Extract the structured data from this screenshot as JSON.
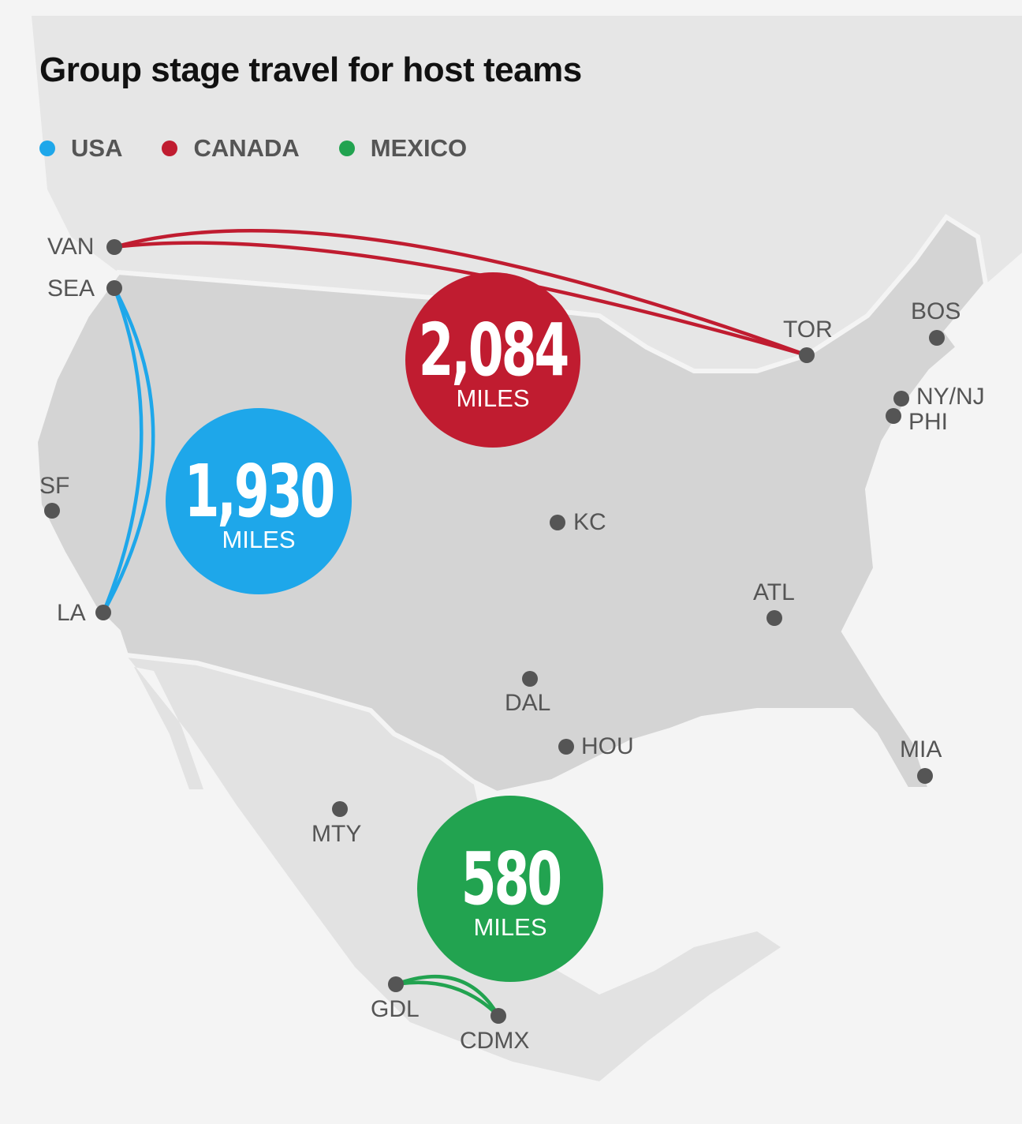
{
  "title": "Group stage travel for host teams",
  "legend": [
    {
      "label": "USA",
      "color": "#1ea7ea"
    },
    {
      "label": "CANADA",
      "color": "#c01c30"
    },
    {
      "label": "MEXICO",
      "color": "#22a350"
    }
  ],
  "cities": [
    "VAN",
    "SEA",
    "SF",
    "LA",
    "KC",
    "ATL",
    "DAL",
    "HOU",
    "MIA",
    "BOS",
    "NY/NJ",
    "PHI",
    "TOR",
    "MTY",
    "GDL",
    "CDMX"
  ],
  "routes": [
    {
      "team": "CANADA",
      "from": "VAN",
      "to": "TOR",
      "color": "#c01c30"
    },
    {
      "team": "USA",
      "from": "SEA",
      "to": "LA",
      "color": "#1ea7ea"
    },
    {
      "team": "MEXICO",
      "from": "GDL",
      "to": "CDMX",
      "color": "#22a350"
    }
  ],
  "totals": [
    {
      "team": "CANADA",
      "value": "2,084",
      "unit": "MILES",
      "color": "#c01c30"
    },
    {
      "team": "USA",
      "value": "1,930",
      "unit": "MILES",
      "color": "#1ea7ea"
    },
    {
      "team": "MEXICO",
      "value": "580",
      "unit": "MILES",
      "color": "#22a350"
    }
  ]
}
